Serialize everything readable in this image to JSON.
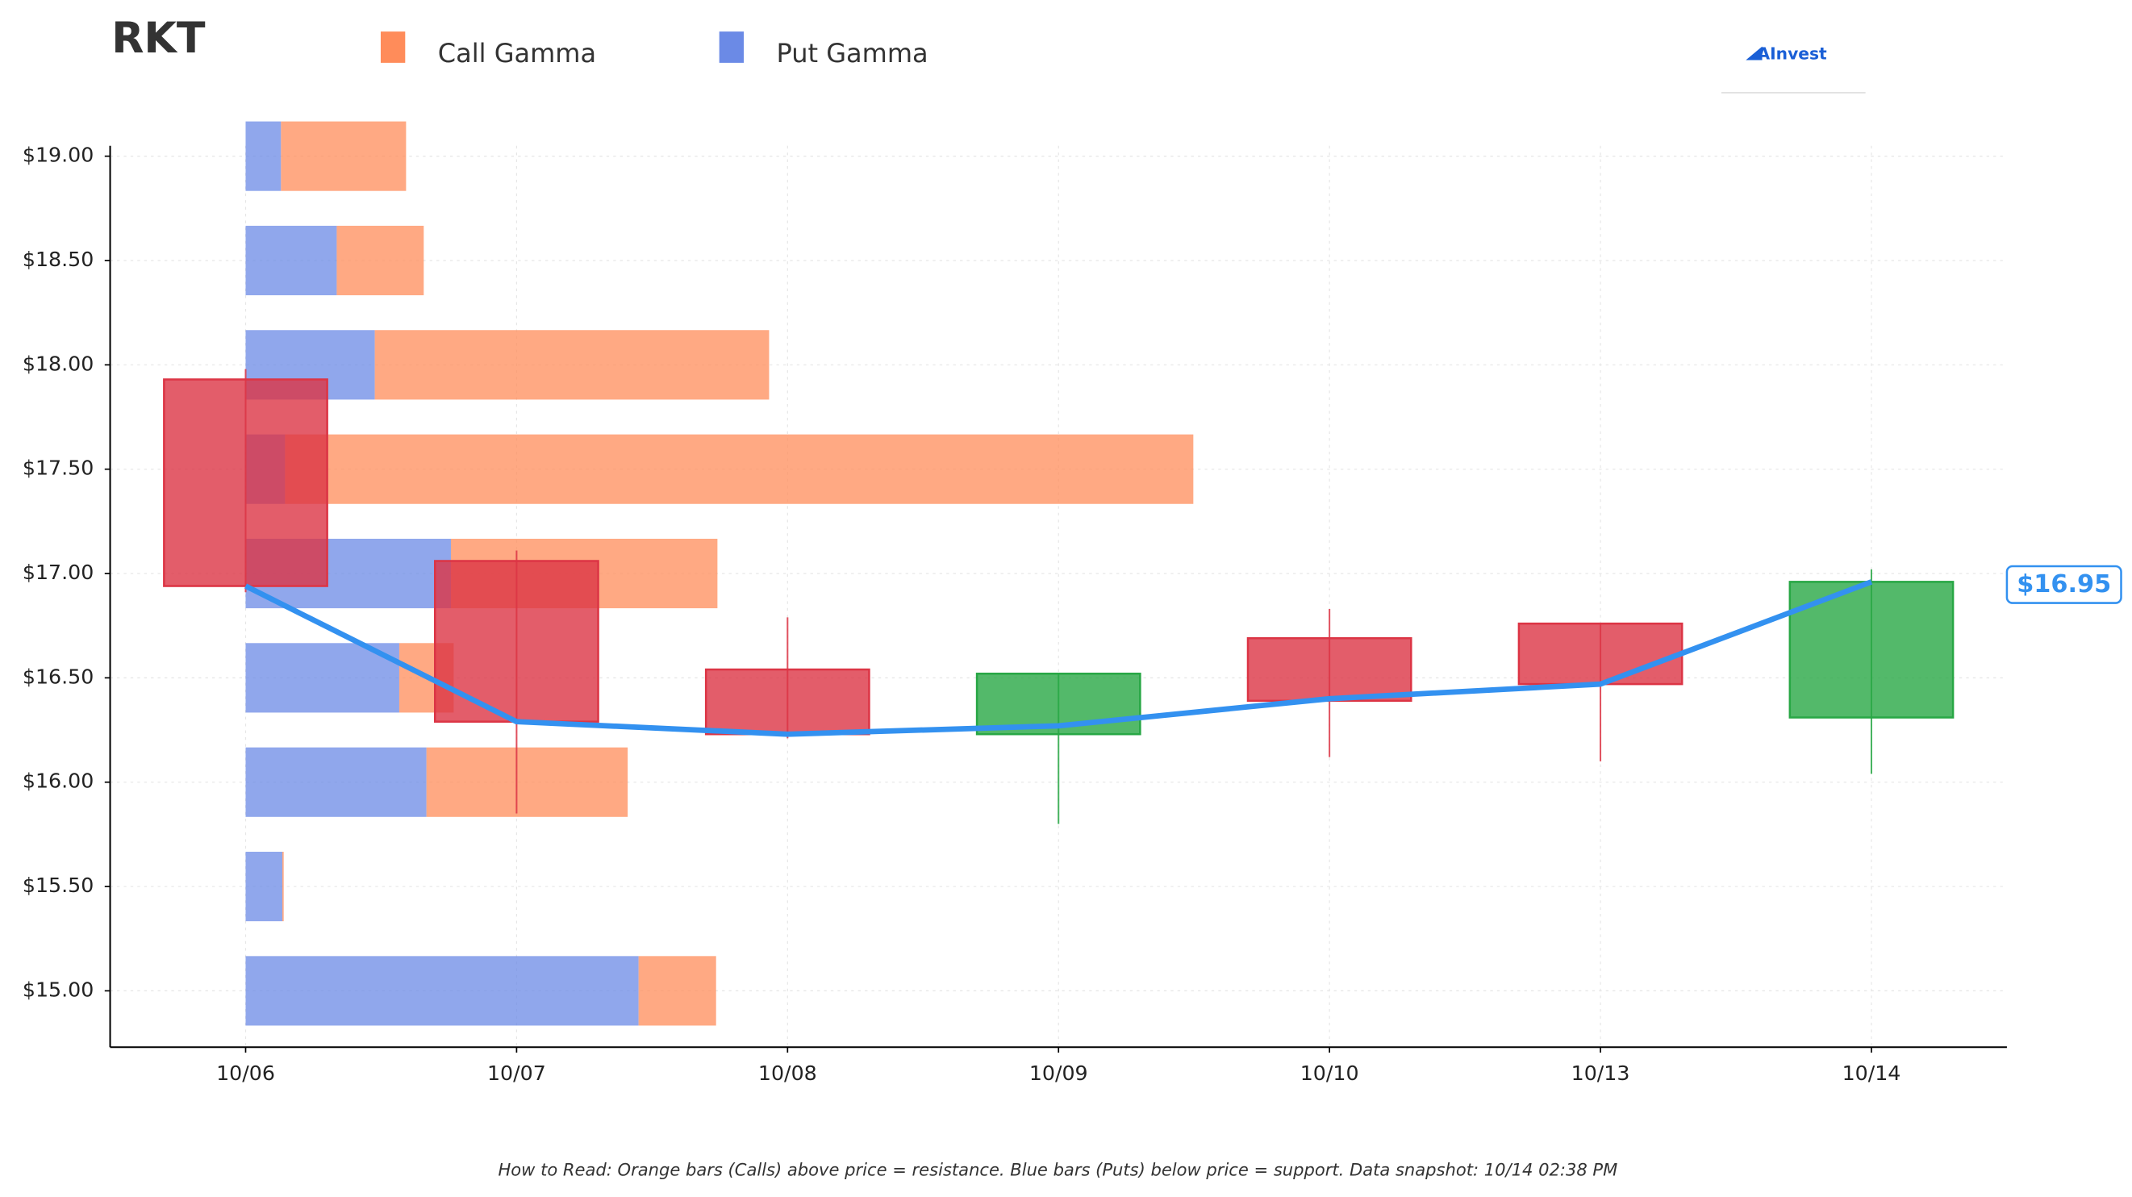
{
  "chart_data": {
    "type": "candlestick_gamma",
    "title": "RKT",
    "footnote": "How to Read: Orange bars (Calls) above price = resistance. Blue bars (Puts) below price = support. Data snapshot: 10/14 02:38 PM",
    "logo": "AInvest",
    "categories": [
      "10/06",
      "10/07",
      "10/08",
      "10/09",
      "10/10",
      "10/13",
      "10/14"
    ],
    "open": [
      17.93,
      17.06,
      16.54,
      16.23,
      16.69,
      16.76,
      16.31
    ],
    "close": [
      16.94,
      16.29,
      16.23,
      16.52,
      16.39,
      16.47,
      16.96
    ],
    "high": [
      17.98,
      17.11,
      16.79,
      16.52,
      16.83,
      16.76,
      17.02
    ],
    "low": [
      16.91,
      15.85,
      16.21,
      15.8,
      16.12,
      16.1,
      16.04
    ],
    "up_color": "#28a745",
    "down_color": "#dc3545",
    "price_line": {
      "values": [
        16.94,
        16.29,
        16.23,
        16.27,
        16.4,
        16.47,
        16.96
      ],
      "color": "#3391f0"
    },
    "price_label": {
      "value": 16.95,
      "label": "$16.95"
    },
    "gamma": {
      "strikes": [
        19.0,
        18.5,
        18.0,
        17.5,
        17.0,
        16.5,
        16.0,
        15.5,
        15.0
      ],
      "series": [
        {
          "name": "Put Gamma",
          "color": "#6b8ae6",
          "values": [
            26,
            67,
            95,
            29,
            151,
            113,
            133,
            27,
            289
          ]
        },
        {
          "name": "Call Gamma",
          "color": "#ff8c5a",
          "values": [
            92,
            64,
            290,
            668,
            196,
            40,
            148,
            1,
            57
          ]
        }
      ]
    },
    "ylim": [
      14.73,
      19.05
    ],
    "yticks": [
      {
        "value": 15.0,
        "label": "$15.00"
      },
      {
        "value": 15.5,
        "label": "$15.50"
      },
      {
        "value": 16.0,
        "label": "$16.00"
      },
      {
        "value": 16.5,
        "label": "$16.50"
      },
      {
        "value": 17.0,
        "label": "$17.00"
      },
      {
        "value": 17.5,
        "label": "$17.50"
      },
      {
        "value": 18.0,
        "label": "$18.00"
      },
      {
        "value": 18.5,
        "label": "$18.50"
      },
      {
        "value": 19.0,
        "label": "$19.00"
      }
    ],
    "grid": true
  }
}
